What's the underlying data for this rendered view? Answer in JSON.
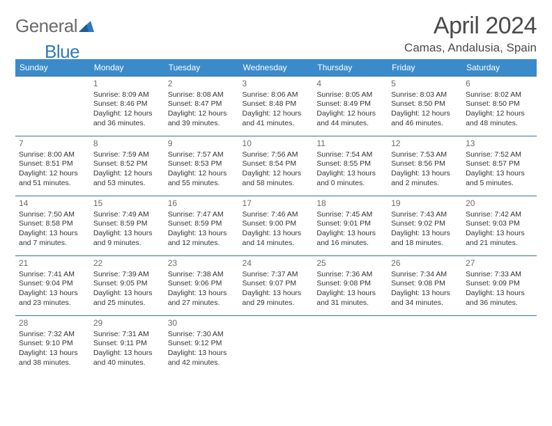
{
  "logo": {
    "general": "General",
    "blue": "Blue"
  },
  "header": {
    "month_title": "April 2024",
    "location": "Camas, Andalusia, Spain"
  },
  "colors": {
    "header_bg": "#3b8bca",
    "header_text": "#ffffff",
    "row_border": "#3b6fa0",
    "logo_gray": "#6a6a6a",
    "logo_blue": "#2f78bd",
    "text": "#333333",
    "daynum": "#6b6b6b",
    "background": "#ffffff"
  },
  "day_headers": [
    "Sunday",
    "Monday",
    "Tuesday",
    "Wednesday",
    "Thursday",
    "Friday",
    "Saturday"
  ],
  "weeks": [
    [
      {
        "num": "",
        "sunrise": "",
        "sunset": "",
        "day1": "",
        "day2": ""
      },
      {
        "num": "1",
        "sunrise": "Sunrise: 8:09 AM",
        "sunset": "Sunset: 8:46 PM",
        "day1": "Daylight: 12 hours",
        "day2": "and 36 minutes."
      },
      {
        "num": "2",
        "sunrise": "Sunrise: 8:08 AM",
        "sunset": "Sunset: 8:47 PM",
        "day1": "Daylight: 12 hours",
        "day2": "and 39 minutes."
      },
      {
        "num": "3",
        "sunrise": "Sunrise: 8:06 AM",
        "sunset": "Sunset: 8:48 PM",
        "day1": "Daylight: 12 hours",
        "day2": "and 41 minutes."
      },
      {
        "num": "4",
        "sunrise": "Sunrise: 8:05 AM",
        "sunset": "Sunset: 8:49 PM",
        "day1": "Daylight: 12 hours",
        "day2": "and 44 minutes."
      },
      {
        "num": "5",
        "sunrise": "Sunrise: 8:03 AM",
        "sunset": "Sunset: 8:50 PM",
        "day1": "Daylight: 12 hours",
        "day2": "and 46 minutes."
      },
      {
        "num": "6",
        "sunrise": "Sunrise: 8:02 AM",
        "sunset": "Sunset: 8:50 PM",
        "day1": "Daylight: 12 hours",
        "day2": "and 48 minutes."
      }
    ],
    [
      {
        "num": "7",
        "sunrise": "Sunrise: 8:00 AM",
        "sunset": "Sunset: 8:51 PM",
        "day1": "Daylight: 12 hours",
        "day2": "and 51 minutes."
      },
      {
        "num": "8",
        "sunrise": "Sunrise: 7:59 AM",
        "sunset": "Sunset: 8:52 PM",
        "day1": "Daylight: 12 hours",
        "day2": "and 53 minutes."
      },
      {
        "num": "9",
        "sunrise": "Sunrise: 7:57 AM",
        "sunset": "Sunset: 8:53 PM",
        "day1": "Daylight: 12 hours",
        "day2": "and 55 minutes."
      },
      {
        "num": "10",
        "sunrise": "Sunrise: 7:56 AM",
        "sunset": "Sunset: 8:54 PM",
        "day1": "Daylight: 12 hours",
        "day2": "and 58 minutes."
      },
      {
        "num": "11",
        "sunrise": "Sunrise: 7:54 AM",
        "sunset": "Sunset: 8:55 PM",
        "day1": "Daylight: 13 hours",
        "day2": "and 0 minutes."
      },
      {
        "num": "12",
        "sunrise": "Sunrise: 7:53 AM",
        "sunset": "Sunset: 8:56 PM",
        "day1": "Daylight: 13 hours",
        "day2": "and 2 minutes."
      },
      {
        "num": "13",
        "sunrise": "Sunrise: 7:52 AM",
        "sunset": "Sunset: 8:57 PM",
        "day1": "Daylight: 13 hours",
        "day2": "and 5 minutes."
      }
    ],
    [
      {
        "num": "14",
        "sunrise": "Sunrise: 7:50 AM",
        "sunset": "Sunset: 8:58 PM",
        "day1": "Daylight: 13 hours",
        "day2": "and 7 minutes."
      },
      {
        "num": "15",
        "sunrise": "Sunrise: 7:49 AM",
        "sunset": "Sunset: 8:59 PM",
        "day1": "Daylight: 13 hours",
        "day2": "and 9 minutes."
      },
      {
        "num": "16",
        "sunrise": "Sunrise: 7:47 AM",
        "sunset": "Sunset: 8:59 PM",
        "day1": "Daylight: 13 hours",
        "day2": "and 12 minutes."
      },
      {
        "num": "17",
        "sunrise": "Sunrise: 7:46 AM",
        "sunset": "Sunset: 9:00 PM",
        "day1": "Daylight: 13 hours",
        "day2": "and 14 minutes."
      },
      {
        "num": "18",
        "sunrise": "Sunrise: 7:45 AM",
        "sunset": "Sunset: 9:01 PM",
        "day1": "Daylight: 13 hours",
        "day2": "and 16 minutes."
      },
      {
        "num": "19",
        "sunrise": "Sunrise: 7:43 AM",
        "sunset": "Sunset: 9:02 PM",
        "day1": "Daylight: 13 hours",
        "day2": "and 18 minutes."
      },
      {
        "num": "20",
        "sunrise": "Sunrise: 7:42 AM",
        "sunset": "Sunset: 9:03 PM",
        "day1": "Daylight: 13 hours",
        "day2": "and 21 minutes."
      }
    ],
    [
      {
        "num": "21",
        "sunrise": "Sunrise: 7:41 AM",
        "sunset": "Sunset: 9:04 PM",
        "day1": "Daylight: 13 hours",
        "day2": "and 23 minutes."
      },
      {
        "num": "22",
        "sunrise": "Sunrise: 7:39 AM",
        "sunset": "Sunset: 9:05 PM",
        "day1": "Daylight: 13 hours",
        "day2": "and 25 minutes."
      },
      {
        "num": "23",
        "sunrise": "Sunrise: 7:38 AM",
        "sunset": "Sunset: 9:06 PM",
        "day1": "Daylight: 13 hours",
        "day2": "and 27 minutes."
      },
      {
        "num": "24",
        "sunrise": "Sunrise: 7:37 AM",
        "sunset": "Sunset: 9:07 PM",
        "day1": "Daylight: 13 hours",
        "day2": "and 29 minutes."
      },
      {
        "num": "25",
        "sunrise": "Sunrise: 7:36 AM",
        "sunset": "Sunset: 9:08 PM",
        "day1": "Daylight: 13 hours",
        "day2": "and 31 minutes."
      },
      {
        "num": "26",
        "sunrise": "Sunrise: 7:34 AM",
        "sunset": "Sunset: 9:08 PM",
        "day1": "Daylight: 13 hours",
        "day2": "and 34 minutes."
      },
      {
        "num": "27",
        "sunrise": "Sunrise: 7:33 AM",
        "sunset": "Sunset: 9:09 PM",
        "day1": "Daylight: 13 hours",
        "day2": "and 36 minutes."
      }
    ],
    [
      {
        "num": "28",
        "sunrise": "Sunrise: 7:32 AM",
        "sunset": "Sunset: 9:10 PM",
        "day1": "Daylight: 13 hours",
        "day2": "and 38 minutes."
      },
      {
        "num": "29",
        "sunrise": "Sunrise: 7:31 AM",
        "sunset": "Sunset: 9:11 PM",
        "day1": "Daylight: 13 hours",
        "day2": "and 40 minutes."
      },
      {
        "num": "30",
        "sunrise": "Sunrise: 7:30 AM",
        "sunset": "Sunset: 9:12 PM",
        "day1": "Daylight: 13 hours",
        "day2": "and 42 minutes."
      },
      {
        "num": "",
        "sunrise": "",
        "sunset": "",
        "day1": "",
        "day2": ""
      },
      {
        "num": "",
        "sunrise": "",
        "sunset": "",
        "day1": "",
        "day2": ""
      },
      {
        "num": "",
        "sunrise": "",
        "sunset": "",
        "day1": "",
        "day2": ""
      },
      {
        "num": "",
        "sunrise": "",
        "sunset": "",
        "day1": "",
        "day2": ""
      }
    ]
  ]
}
